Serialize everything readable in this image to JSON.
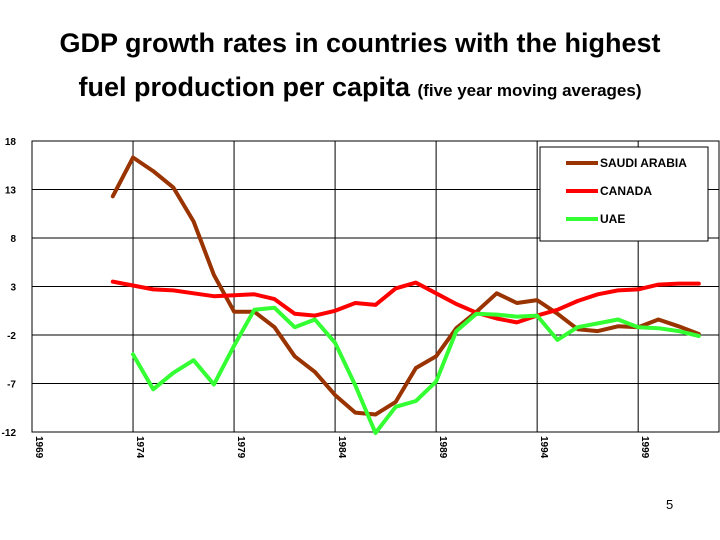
{
  "title_line1": "GDP growth rates in countries with the highest",
  "title_line2_main": "fuel production per capita",
  "title_line2_sub": "(five year moving averages)",
  "page_number": "5",
  "chart_data": {
    "type": "line",
    "title": "GDP growth rates in countries with the highest fuel production per capita (five year moving averages)",
    "xlabel": "",
    "ylabel": "",
    "xlim": [
      1969,
      2003
    ],
    "ylim": [
      -12,
      18
    ],
    "y_ticks": [
      18,
      13,
      8,
      3,
      -2,
      -7,
      -12
    ],
    "y_tick_labels": [
      "18",
      "13",
      "8",
      "3",
      "-2",
      "-7",
      "-12"
    ],
    "x_ticks": [
      1969,
      1974,
      1979,
      1984,
      1989,
      1994,
      1999
    ],
    "x_tick_labels": [
      "1969",
      "1974",
      "1979",
      "1984",
      "1989",
      "1994",
      "1999"
    ],
    "grid": "both",
    "legend_position": "top-right",
    "series": [
      {
        "name": "SAUDI ARABIA",
        "color": "#993300",
        "x": [
          1973,
          1974,
          1975,
          1976,
          1977,
          1978,
          1979,
          1980,
          1981,
          1982,
          1983,
          1984,
          1985,
          1986,
          1987,
          1988,
          1989,
          1990,
          1991,
          1992,
          1993,
          1994,
          1995,
          1996,
          1997,
          1998,
          1999,
          2000,
          2001,
          2002
        ],
        "y": [
          12.3,
          16.3,
          14.9,
          13.2,
          9.7,
          4.2,
          0.4,
          0.4,
          -1.2,
          -4.2,
          -5.8,
          -8.2,
          -10.0,
          -10.2,
          -8.9,
          -5.4,
          -4.2,
          -1.3,
          0.4,
          2.3,
          1.3,
          1.6,
          0.2,
          -1.4,
          -1.6,
          -1.1,
          -1.2,
          -0.4,
          -1.1,
          -1.9
        ]
      },
      {
        "name": "CANADA",
        "color": "#ff0000",
        "x": [
          1973,
          1974,
          1975,
          1976,
          1977,
          1978,
          1979,
          1980,
          1981,
          1982,
          1983,
          1984,
          1985,
          1986,
          1987,
          1988,
          1989,
          1990,
          1991,
          1992,
          1993,
          1994,
          1995,
          1996,
          1997,
          1998,
          1999,
          2000,
          2001,
          2002
        ],
        "y": [
          3.5,
          3.1,
          2.7,
          2.6,
          2.3,
          2.0,
          2.1,
          2.2,
          1.7,
          0.2,
          0.0,
          0.5,
          1.3,
          1.1,
          2.8,
          3.4,
          2.3,
          1.2,
          0.3,
          -0.3,
          -0.7,
          0.0,
          0.6,
          1.5,
          2.2,
          2.6,
          2.7,
          3.2,
          3.3,
          3.3
        ]
      },
      {
        "name": "UAE",
        "color": "#33ff33",
        "x": [
          1974,
          1975,
          1976,
          1977,
          1978,
          1979,
          1980,
          1981,
          1982,
          1983,
          1984,
          1985,
          1986,
          1987,
          1988,
          1989,
          1990,
          1991,
          1992,
          1993,
          1994,
          1995,
          1996,
          1997,
          1998,
          1999,
          2000,
          2001,
          2002
        ],
        "y": [
          -4.0,
          -7.6,
          -5.9,
          -4.6,
          -7.1,
          -3.1,
          0.6,
          0.8,
          -1.2,
          -0.4,
          -2.8,
          -7.2,
          -12.1,
          -9.4,
          -8.8,
          -6.8,
          -1.6,
          0.2,
          0.1,
          -0.1,
          0.0,
          -2.5,
          -1.2,
          -0.8,
          -0.4,
          -1.2,
          -1.3,
          -1.6,
          -2.1
        ]
      }
    ]
  }
}
